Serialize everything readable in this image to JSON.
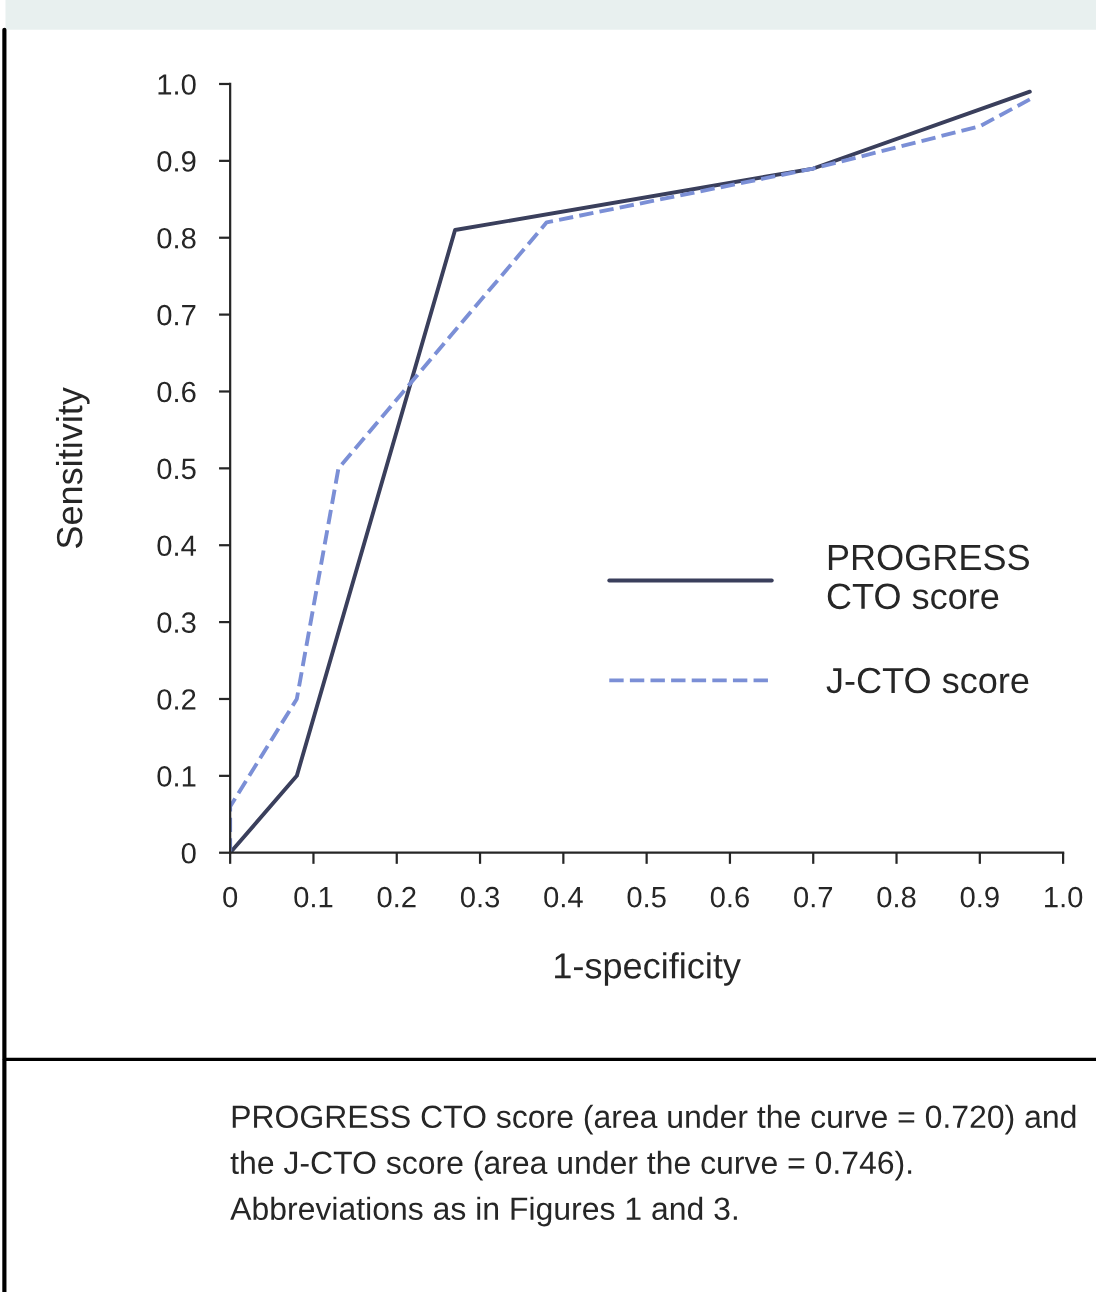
{
  "chart_data": {
    "type": "line",
    "xlabel": "1-specificity",
    "ylabel": "Sensitivity",
    "xlim": [
      0,
      1.0
    ],
    "ylim": [
      0,
      1.0
    ],
    "xticks": [
      0,
      0.1,
      0.2,
      0.3,
      0.4,
      0.5,
      0.6,
      0.7,
      0.8,
      0.9,
      {
        "value": 1.0,
        "label": "1.0"
      }
    ],
    "yticks": [
      0,
      0.1,
      0.2,
      0.3,
      0.4,
      0.5,
      0.6,
      0.7,
      0.8,
      0.9,
      {
        "value": 1.0,
        "label": "1.0"
      }
    ],
    "series": [
      {
        "name": "PROGRESS CTO score",
        "color": "#3a3f5c",
        "line_style": "solid",
        "x": [
          0,
          0.08,
          0.27,
          0.7,
          0.96
        ],
        "values": [
          0,
          0.1,
          0.81,
          0.89,
          0.99
        ]
      },
      {
        "name": "J-CTO score",
        "color": "#7b8fd6",
        "line_style": "dashed",
        "x": [
          0,
          0,
          0.08,
          0.13,
          0.38,
          0.7,
          0.9,
          0.96
        ],
        "values": [
          0,
          0.06,
          0.2,
          0.5,
          0.82,
          0.89,
          0.945,
          0.98
        ]
      }
    ],
    "grid": false,
    "legend": "right",
    "marker": "none",
    "annotations": [
      "PROGRESS CTO score (area under the curve = 0.720) and the J-CTO score (area under the curve = 0.746). Abbreviations as in Figures 1 and 3."
    ]
  }
}
